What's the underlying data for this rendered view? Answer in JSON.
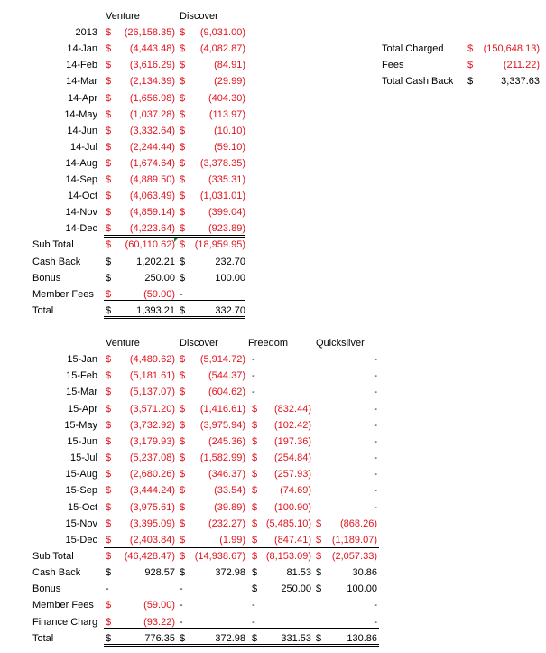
{
  "colors": {
    "negative": "#e0141e",
    "text": "#000000",
    "comment_marker": "#0a8a2a"
  },
  "table2014": {
    "headers": [
      "Venture",
      "Discover"
    ],
    "rows": [
      {
        "label": "2013",
        "cells": [
          {
            "c": "$",
            "v": "(26,158.35)",
            "neg": true
          },
          {
            "c": "$",
            "v": "(9,031.00)",
            "neg": true
          }
        ]
      },
      {
        "label": "14-Jan",
        "cells": [
          {
            "c": "$",
            "v": "(4,443.48)",
            "neg": true
          },
          {
            "c": "$",
            "v": "(4,082.87)",
            "neg": true
          }
        ]
      },
      {
        "label": "14-Feb",
        "cells": [
          {
            "c": "$",
            "v": "(3,616.29)",
            "neg": true
          },
          {
            "c": "$",
            "v": "(84.91)",
            "neg": true
          }
        ]
      },
      {
        "label": "14-Mar",
        "cells": [
          {
            "c": "$",
            "v": "(2,134.39)",
            "neg": true
          },
          {
            "c": "$",
            "v": "(29.99)",
            "neg": true
          }
        ]
      },
      {
        "label": "14-Apr",
        "cells": [
          {
            "c": "$",
            "v": "(1,656.98)",
            "neg": true
          },
          {
            "c": "$",
            "v": "(404.30)",
            "neg": true
          }
        ]
      },
      {
        "label": "14-May",
        "cells": [
          {
            "c": "$",
            "v": "(1,037.28)",
            "neg": true
          },
          {
            "c": "$",
            "v": "(113.97)",
            "neg": true
          }
        ]
      },
      {
        "label": "14-Jun",
        "cells": [
          {
            "c": "$",
            "v": "(3,332.64)",
            "neg": true
          },
          {
            "c": "$",
            "v": "(10.10)",
            "neg": true
          }
        ]
      },
      {
        "label": "14-Jul",
        "cells": [
          {
            "c": "$",
            "v": "(2,244.44)",
            "neg": true
          },
          {
            "c": "$",
            "v": "(59.10)",
            "neg": true
          }
        ]
      },
      {
        "label": "14-Aug",
        "cells": [
          {
            "c": "$",
            "v": "(1,674.64)",
            "neg": true
          },
          {
            "c": "$",
            "v": "(3,378.35)",
            "neg": true
          }
        ]
      },
      {
        "label": "14-Sep",
        "cells": [
          {
            "c": "$",
            "v": "(4,889.50)",
            "neg": true
          },
          {
            "c": "$",
            "v": "(335.31)",
            "neg": true
          }
        ]
      },
      {
        "label": "14-Oct",
        "cells": [
          {
            "c": "$",
            "v": "(4,063.49)",
            "neg": true
          },
          {
            "c": "$",
            "v": "(1,031.01)",
            "neg": true
          }
        ]
      },
      {
        "label": "14-Nov",
        "cells": [
          {
            "c": "$",
            "v": "(4,859.14)",
            "neg": true
          },
          {
            "c": "$",
            "v": "(399.04)",
            "neg": true
          }
        ]
      },
      {
        "label": "14-Dec",
        "cells": [
          {
            "c": "$",
            "v": "(4,223.64)",
            "neg": true
          },
          {
            "c": "$",
            "v": "(923.89)",
            "neg": true
          }
        ]
      },
      {
        "label": "Sub Total",
        "cells": [
          {
            "c": "$",
            "v": "(60,110.62)",
            "neg": true
          },
          {
            "c": "$",
            "v": "(18,959.95)",
            "neg": true
          }
        ]
      },
      {
        "label": "Cash Back",
        "cells": [
          {
            "c": "$",
            "v": "1,202.21",
            "neg": false
          },
          {
            "c": "$",
            "v": "232.70",
            "neg": false
          }
        ]
      },
      {
        "label": "Bonus",
        "cells": [
          {
            "c": "$",
            "v": "250.00",
            "neg": false
          },
          {
            "c": "$",
            "v": "100.00",
            "neg": false
          }
        ]
      },
      {
        "label": "Member Fees",
        "cells": [
          {
            "c": "$",
            "v": "(59.00)",
            "neg": true
          },
          {
            "c": "-",
            "v": "",
            "neg": false
          }
        ]
      },
      {
        "label": "Total",
        "cells": [
          {
            "c": "$",
            "v": "1,393.21",
            "neg": false
          },
          {
            "c": "$",
            "v": "332.70",
            "neg": false
          }
        ]
      }
    ]
  },
  "summary": [
    {
      "label": "Total Charged",
      "c": "$",
      "v": "(150,648.13)",
      "neg": true
    },
    {
      "label": "Fees",
      "c": "$",
      "v": "(211.22)",
      "neg": true
    },
    {
      "label": "Total Cash Back",
      "c": "$",
      "v": "3,337.63",
      "neg": false
    }
  ],
  "table2015": {
    "headers": [
      "Venture",
      "Discover",
      "Freedom",
      "Quicksilver"
    ],
    "rows": [
      {
        "label": "15-Jan",
        "cells": [
          {
            "c": "$",
            "v": "(4,489.62)",
            "neg": true
          },
          {
            "c": "$",
            "v": "(5,914.72)",
            "neg": true
          },
          {
            "c": "-",
            "v": "",
            "neg": false
          },
          {
            "c": "",
            "v": "-",
            "neg": false
          }
        ]
      },
      {
        "label": "15-Feb",
        "cells": [
          {
            "c": "$",
            "v": "(5,181.61)",
            "neg": true
          },
          {
            "c": "$",
            "v": "(544.37)",
            "neg": true
          },
          {
            "c": "-",
            "v": "",
            "neg": false
          },
          {
            "c": "",
            "v": "-",
            "neg": false
          }
        ]
      },
      {
        "label": "15-Mar",
        "cells": [
          {
            "c": "$",
            "v": "(5,137.07)",
            "neg": true
          },
          {
            "c": "$",
            "v": "(604.62)",
            "neg": true
          },
          {
            "c": "-",
            "v": "",
            "neg": false
          },
          {
            "c": "",
            "v": "-",
            "neg": false
          }
        ]
      },
      {
        "label": "15-Apr",
        "cells": [
          {
            "c": "$",
            "v": "(3,571.20)",
            "neg": true
          },
          {
            "c": "$",
            "v": "(1,416.61)",
            "neg": true
          },
          {
            "c": "$",
            "v": "(832.44)",
            "neg": true
          },
          {
            "c": "",
            "v": "-",
            "neg": false
          }
        ]
      },
      {
        "label": "15-May",
        "cells": [
          {
            "c": "$",
            "v": "(3,732.92)",
            "neg": true
          },
          {
            "c": "$",
            "v": "(3,975.94)",
            "neg": true
          },
          {
            "c": "$",
            "v": "(102.42)",
            "neg": true
          },
          {
            "c": "",
            "v": "-",
            "neg": false
          }
        ]
      },
      {
        "label": "15-Jun",
        "cells": [
          {
            "c": "$",
            "v": "(3,179.93)",
            "neg": true
          },
          {
            "c": "$",
            "v": "(245.36)",
            "neg": true
          },
          {
            "c": "$",
            "v": "(197.36)",
            "neg": true
          },
          {
            "c": "",
            "v": "-",
            "neg": false
          }
        ]
      },
      {
        "label": "15-Jul",
        "cells": [
          {
            "c": "$",
            "v": "(5,237.08)",
            "neg": true
          },
          {
            "c": "$",
            "v": "(1,582.99)",
            "neg": true
          },
          {
            "c": "$",
            "v": "(254.84)",
            "neg": true
          },
          {
            "c": "",
            "v": "-",
            "neg": false
          }
        ]
      },
      {
        "label": "15-Aug",
        "cells": [
          {
            "c": "$",
            "v": "(2,680.26)",
            "neg": true
          },
          {
            "c": "$",
            "v": "(346.37)",
            "neg": true
          },
          {
            "c": "$",
            "v": "(257.93)",
            "neg": true
          },
          {
            "c": "",
            "v": "-",
            "neg": false
          }
        ]
      },
      {
        "label": "15-Sep",
        "cells": [
          {
            "c": "$",
            "v": "(3,444.24)",
            "neg": true
          },
          {
            "c": "$",
            "v": "(33.54)",
            "neg": true
          },
          {
            "c": "$",
            "v": "(74.69)",
            "neg": true
          },
          {
            "c": "",
            "v": "-",
            "neg": false
          }
        ]
      },
      {
        "label": "15-Oct",
        "cells": [
          {
            "c": "$",
            "v": "(3,975.61)",
            "neg": true
          },
          {
            "c": "$",
            "v": "(39.89)",
            "neg": true
          },
          {
            "c": "$",
            "v": "(100.90)",
            "neg": true
          },
          {
            "c": "",
            "v": "-",
            "neg": false
          }
        ]
      },
      {
        "label": "15-Nov",
        "cells": [
          {
            "c": "$",
            "v": "(3,395.09)",
            "neg": true
          },
          {
            "c": "$",
            "v": "(232.27)",
            "neg": true
          },
          {
            "c": "$",
            "v": "(5,485.10)",
            "neg": true
          },
          {
            "c": "$",
            "v": "(868.26)",
            "neg": true
          }
        ]
      },
      {
        "label": "15-Dec",
        "cells": [
          {
            "c": "$",
            "v": "(2,403.84)",
            "neg": true
          },
          {
            "c": "$",
            "v": "(1.99)",
            "neg": true
          },
          {
            "c": "$",
            "v": "(847.41)",
            "neg": true
          },
          {
            "c": "$",
            "v": "(1,189.07)",
            "neg": true
          }
        ]
      },
      {
        "label": "Sub Total",
        "cells": [
          {
            "c": "$",
            "v": "(46,428.47)",
            "neg": true
          },
          {
            "c": "$",
            "v": "(14,938.67)",
            "neg": true
          },
          {
            "c": "$",
            "v": "(8,153.09)",
            "neg": true
          },
          {
            "c": "$",
            "v": "(2,057.33)",
            "neg": true
          }
        ]
      },
      {
        "label": "Cash Back",
        "cells": [
          {
            "c": "$",
            "v": "928.57",
            "neg": false
          },
          {
            "c": "$",
            "v": "372.98",
            "neg": false
          },
          {
            "c": "$",
            "v": "81.53",
            "neg": false
          },
          {
            "c": "$",
            "v": "30.86",
            "neg": false
          }
        ]
      },
      {
        "label": "Bonus",
        "cells": [
          {
            "c": "-",
            "v": "",
            "neg": false
          },
          {
            "c": "-",
            "v": "",
            "neg": false
          },
          {
            "c": "$",
            "v": "250.00",
            "neg": false
          },
          {
            "c": "$",
            "v": "100.00",
            "neg": false
          }
        ]
      },
      {
        "label": "Member Fees",
        "cells": [
          {
            "c": "$",
            "v": "(59.00)",
            "neg": true
          },
          {
            "c": "-",
            "v": "",
            "neg": false
          },
          {
            "c": "-",
            "v": "",
            "neg": false
          },
          {
            "c": "",
            "v": "-",
            "neg": false
          }
        ]
      },
      {
        "label": "Finance Charg",
        "cells": [
          {
            "c": "$",
            "v": "(93.22)",
            "neg": true
          },
          {
            "c": "-",
            "v": "",
            "neg": false
          },
          {
            "c": "-",
            "v": "",
            "neg": false
          },
          {
            "c": "",
            "v": "-",
            "neg": false
          }
        ]
      },
      {
        "label": "Total",
        "cells": [
          {
            "c": "$",
            "v": "776.35",
            "neg": false
          },
          {
            "c": "$",
            "v": "372.98",
            "neg": false
          },
          {
            "c": "$",
            "v": "331.53",
            "neg": false
          },
          {
            "c": "$",
            "v": "130.86",
            "neg": false
          }
        ]
      }
    ]
  }
}
